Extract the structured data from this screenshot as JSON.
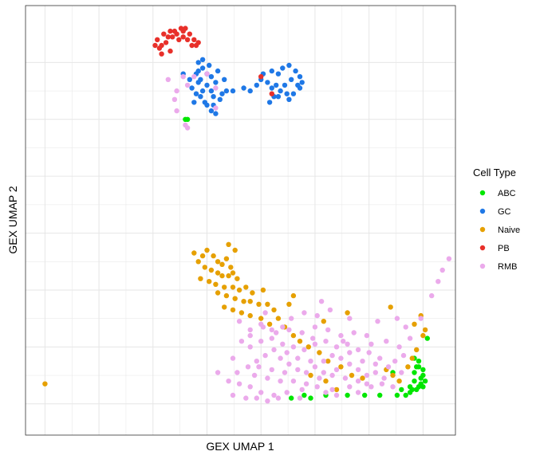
{
  "chart_data": {
    "type": "scatter",
    "title": "",
    "xlabel": "GEX UMAP 1",
    "ylabel": "GEX UMAP 2",
    "xlim": [
      -3.4,
      16.5
    ],
    "ylim": [
      -1.1,
      14.0
    ],
    "x_ticks": [
      -2.5,
      0,
      2.5,
      5,
      7.5,
      10,
      12.5,
      15
    ],
    "y_ticks": [
      0,
      2,
      4,
      6,
      8,
      10,
      12
    ],
    "tick_labels_shown": false,
    "grid": true,
    "legend": {
      "title": "Cell Type",
      "position": "right"
    },
    "series": [
      {
        "name": "ABC",
        "color": "#00E600",
        "points": [
          [
            4.0,
            10.0
          ],
          [
            4.1,
            10.0
          ],
          [
            14.5,
            0.5
          ],
          [
            14.7,
            0.5
          ],
          [
            14.8,
            0.6
          ],
          [
            14.9,
            0.7
          ],
          [
            15.0,
            0.6
          ],
          [
            14.6,
            0.8
          ],
          [
            14.9,
            0.9
          ],
          [
            15.0,
            1.0
          ],
          [
            15.1,
            0.8
          ],
          [
            14.4,
            0.4
          ],
          [
            14.2,
            0.3
          ],
          [
            13.8,
            0.3
          ],
          [
            13.0,
            0.3
          ],
          [
            12.3,
            0.3
          ],
          [
            11.5,
            0.3
          ],
          [
            10.5,
            0.3
          ],
          [
            9.8,
            0.2
          ],
          [
            9.5,
            0.3
          ],
          [
            8.9,
            0.2
          ],
          [
            13.6,
            1.1
          ],
          [
            14.6,
            1.1
          ],
          [
            14.8,
            1.3
          ],
          [
            14.6,
            1.6
          ],
          [
            14.7,
            1.3
          ],
          [
            15.2,
            2.3
          ],
          [
            15.0,
            1.2
          ],
          [
            14.8,
            1.5
          ],
          [
            14.4,
            0.6
          ],
          [
            14.0,
            0.5
          ]
        ]
      },
      {
        "name": "GC",
        "color": "#1F78E6",
        "points": [
          [
            4.6,
            12.0
          ],
          [
            4.8,
            11.8
          ],
          [
            4.5,
            11.6
          ],
          [
            4.6,
            11.3
          ],
          [
            4.8,
            11.0
          ],
          [
            5.0,
            11.2
          ],
          [
            5.2,
            11.0
          ],
          [
            5.4,
            11.3
          ],
          [
            5.3,
            10.8
          ],
          [
            5.0,
            10.5
          ],
          [
            4.7,
            10.8
          ],
          [
            4.9,
            10.6
          ],
          [
            5.3,
            10.5
          ],
          [
            5.6,
            10.7
          ],
          [
            5.2,
            11.5
          ],
          [
            4.3,
            11.1
          ],
          [
            4.2,
            11.4
          ],
          [
            3.9,
            11.6
          ],
          [
            5.8,
            11.4
          ],
          [
            5.9,
            11.0
          ],
          [
            4.6,
            11.7
          ],
          [
            5.1,
            11.9
          ],
          [
            4.8,
            12.1
          ],
          [
            4.7,
            11.4
          ],
          [
            5.0,
            11.6
          ],
          [
            4.5,
            10.9
          ],
          [
            5.2,
            10.3
          ],
          [
            5.4,
            10.2
          ],
          [
            8.3,
            11.6
          ],
          [
            8.5,
            11.8
          ],
          [
            8.8,
            11.9
          ],
          [
            9.1,
            11.7
          ],
          [
            9.3,
            11.5
          ],
          [
            9.2,
            11.2
          ],
          [
            9.0,
            10.9
          ],
          [
            8.7,
            10.9
          ],
          [
            8.4,
            11.0
          ],
          [
            8.2,
            11.2
          ],
          [
            8.0,
            11.1
          ],
          [
            7.8,
            11.3
          ],
          [
            7.5,
            11.4
          ],
          [
            7.3,
            11.2
          ],
          [
            7.0,
            11.0
          ],
          [
            6.7,
            11.1
          ],
          [
            7.6,
            11.6
          ],
          [
            8.0,
            11.7
          ],
          [
            8.9,
            11.4
          ],
          [
            9.3,
            11.1
          ],
          [
            8.6,
            11.2
          ],
          [
            8.1,
            10.8
          ],
          [
            7.9,
            10.6
          ],
          [
            8.3,
            10.8
          ],
          [
            8.8,
            10.7
          ],
          [
            9.4,
            11.3
          ],
          [
            6.2,
            11.0
          ],
          [
            5.5,
            11.7
          ],
          [
            4.4,
            10.6
          ],
          [
            5.7,
            10.9
          ]
        ]
      },
      {
        "name": "Naive",
        "color": "#E6A000",
        "points": [
          [
            -2.5,
            0.7
          ],
          [
            4.4,
            5.3
          ],
          [
            4.8,
            5.2
          ],
          [
            5.0,
            5.4
          ],
          [
            5.3,
            5.2
          ],
          [
            5.5,
            5.0
          ],
          [
            5.7,
            4.9
          ],
          [
            5.9,
            5.1
          ],
          [
            6.1,
            4.8
          ],
          [
            4.6,
            5.0
          ],
          [
            4.9,
            4.8
          ],
          [
            5.2,
            4.7
          ],
          [
            5.5,
            4.6
          ],
          [
            5.7,
            4.5
          ],
          [
            6.0,
            4.5
          ],
          [
            6.2,
            4.6
          ],
          [
            6.4,
            4.4
          ],
          [
            4.7,
            4.4
          ],
          [
            5.1,
            4.3
          ],
          [
            5.4,
            4.2
          ],
          [
            5.8,
            4.1
          ],
          [
            6.2,
            4.1
          ],
          [
            6.5,
            4.0
          ],
          [
            6.8,
            4.1
          ],
          [
            7.1,
            3.9
          ],
          [
            5.5,
            3.9
          ],
          [
            5.9,
            3.8
          ],
          [
            6.3,
            3.7
          ],
          [
            6.7,
            3.6
          ],
          [
            7.0,
            3.6
          ],
          [
            7.4,
            3.5
          ],
          [
            7.8,
            3.5
          ],
          [
            8.1,
            3.3
          ],
          [
            8.3,
            3.0
          ],
          [
            5.8,
            3.4
          ],
          [
            6.2,
            3.3
          ],
          [
            6.6,
            3.2
          ],
          [
            7.0,
            3.1
          ],
          [
            7.5,
            3.0
          ],
          [
            7.9,
            2.8
          ],
          [
            8.6,
            2.7
          ],
          [
            9.0,
            2.4
          ],
          [
            9.3,
            2.2
          ],
          [
            9.7,
            2.0
          ],
          [
            10.2,
            1.8
          ],
          [
            10.6,
            1.5
          ],
          [
            11.2,
            1.3
          ],
          [
            11.7,
            1.0
          ],
          [
            12.2,
            0.9
          ],
          [
            13.3,
            1.2
          ],
          [
            13.6,
            1.0
          ],
          [
            13.9,
            0.8
          ],
          [
            14.3,
            1.3
          ],
          [
            14.5,
            1.6
          ],
          [
            14.7,
            1.9
          ],
          [
            15.0,
            2.4
          ],
          [
            15.1,
            2.6
          ],
          [
            14.6,
            2.8
          ],
          [
            14.9,
            3.1
          ],
          [
            13.5,
            3.4
          ],
          [
            9.8,
            1.0
          ],
          [
            10.5,
            0.8
          ],
          [
            11.0,
            0.5
          ],
          [
            9.0,
            3.8
          ],
          [
            6.0,
            5.6
          ],
          [
            6.3,
            5.4
          ],
          [
            10.4,
            2.9
          ],
          [
            11.5,
            3.2
          ],
          [
            8.8,
            3.5
          ],
          [
            7.6,
            4.0
          ]
        ]
      },
      {
        "name": "PB",
        "color": "#E8302A",
        "points": [
          [
            3.7,
            12.8
          ],
          [
            3.9,
            12.9
          ],
          [
            4.1,
            12.8
          ],
          [
            4.3,
            12.6
          ],
          [
            3.6,
            13.0
          ],
          [
            3.9,
            13.1
          ],
          [
            4.2,
            13.0
          ],
          [
            4.4,
            12.8
          ],
          [
            4.5,
            12.6
          ],
          [
            3.4,
            12.9
          ],
          [
            3.5,
            13.1
          ],
          [
            3.2,
            12.9
          ],
          [
            3.1,
            12.7
          ],
          [
            2.9,
            12.6
          ],
          [
            2.8,
            12.5
          ],
          [
            2.6,
            12.6
          ],
          [
            2.7,
            12.8
          ],
          [
            3.0,
            13.0
          ],
          [
            3.3,
            13.1
          ],
          [
            3.8,
            13.2
          ],
          [
            4.0,
            13.2
          ],
          [
            4.6,
            12.7
          ],
          [
            3.3,
            12.4
          ],
          [
            2.9,
            12.3
          ],
          [
            7.5,
            11.5
          ],
          [
            8.0,
            10.9
          ]
        ]
      },
      {
        "name": "RMB",
        "color": "#EBAAEB",
        "points": [
          [
            3.2,
            11.4
          ],
          [
            3.6,
            11.0
          ],
          [
            3.9,
            11.5
          ],
          [
            4.1,
            11.2
          ],
          [
            4.4,
            11.5
          ],
          [
            5.0,
            11.6
          ],
          [
            5.4,
            11.1
          ],
          [
            3.5,
            10.7
          ],
          [
            3.6,
            10.3
          ],
          [
            4.0,
            9.8
          ],
          [
            4.1,
            9.7
          ],
          [
            5.4,
            10.4
          ],
          [
            6.5,
            2.9
          ],
          [
            7.0,
            2.6
          ],
          [
            7.5,
            2.8
          ],
          [
            8.0,
            2.6
          ],
          [
            8.5,
            2.7
          ],
          [
            16.2,
            5.1
          ],
          [
            15.9,
            4.7
          ],
          [
            15.7,
            4.3
          ],
          [
            15.4,
            3.8
          ],
          [
            14.9,
            3.0
          ],
          [
            7.0,
            0.6
          ],
          [
            7.5,
            0.4
          ],
          [
            6.5,
            0.7
          ],
          [
            6.8,
            0.2
          ],
          [
            7.3,
            0.2
          ],
          [
            7.8,
            0.1
          ],
          [
            8.3,
            0.2
          ],
          [
            8.7,
            0.4
          ],
          [
            9.4,
            0.5
          ],
          [
            10.1,
            0.6
          ],
          [
            10.8,
            0.5
          ],
          [
            11.6,
            0.6
          ],
          [
            12.4,
            0.7
          ],
          [
            13.1,
            0.7
          ],
          [
            13.6,
            0.6
          ],
          [
            6.4,
            1.1
          ],
          [
            6.9,
            1.3
          ],
          [
            7.3,
            1.5
          ],
          [
            7.7,
            1.7
          ],
          [
            8.1,
            1.9
          ],
          [
            8.4,
            1.6
          ],
          [
            8.8,
            1.4
          ],
          [
            9.2,
            1.2
          ],
          [
            9.6,
            1.1
          ],
          [
            10.0,
            1.3
          ],
          [
            10.4,
            1.5
          ],
          [
            10.8,
            1.7
          ],
          [
            11.2,
            1.6
          ],
          [
            11.6,
            1.4
          ],
          [
            12.0,
            1.2
          ],
          [
            12.4,
            1.0
          ],
          [
            12.8,
            1.1
          ],
          [
            13.2,
            0.9
          ],
          [
            7.0,
            2.0
          ],
          [
            7.5,
            2.2
          ],
          [
            8.0,
            2.3
          ],
          [
            8.5,
            2.1
          ],
          [
            9.0,
            2.0
          ],
          [
            9.5,
            1.9
          ],
          [
            10.0,
            2.1
          ],
          [
            10.5,
            2.2
          ],
          [
            11.0,
            2.0
          ],
          [
            11.5,
            2.1
          ],
          [
            12.0,
            1.9
          ],
          [
            12.5,
            1.8
          ],
          [
            13.0,
            1.6
          ],
          [
            8.2,
            2.5
          ],
          [
            8.8,
            2.6
          ],
          [
            9.4,
            2.5
          ],
          [
            10.0,
            2.7
          ],
          [
            10.6,
            2.6
          ],
          [
            11.2,
            2.4
          ],
          [
            11.8,
            2.5
          ],
          [
            12.4,
            2.4
          ],
          [
            9.0,
            0.8
          ],
          [
            9.6,
            0.7
          ],
          [
            10.2,
            0.9
          ],
          [
            10.8,
            1.0
          ],
          [
            11.4,
            0.9
          ],
          [
            12.0,
            0.8
          ],
          [
            12.6,
            0.6
          ],
          [
            13.4,
            1.3
          ],
          [
            7.2,
            1.0
          ],
          [
            7.8,
            0.9
          ],
          [
            8.4,
            0.8
          ],
          [
            8.0,
            1.2
          ],
          [
            8.6,
            1.1
          ],
          [
            9.2,
            1.6
          ],
          [
            9.8,
            1.5
          ],
          [
            10.4,
            1.1
          ],
          [
            11.0,
            1.2
          ],
          [
            11.6,
            1.8
          ],
          [
            12.2,
            1.5
          ],
          [
            12.8,
            1.4
          ],
          [
            8.9,
            3.0
          ],
          [
            9.5,
            3.2
          ],
          [
            10.1,
            3.1
          ],
          [
            10.7,
            3.3
          ],
          [
            7.7,
            3.2
          ],
          [
            13.8,
            3.0
          ],
          [
            14.2,
            2.7
          ],
          [
            14.4,
            2.3
          ],
          [
            13.9,
            2.0
          ],
          [
            14.1,
            1.7
          ],
          [
            13.7,
            1.5
          ],
          [
            14.0,
            1.1
          ],
          [
            6.0,
            0.8
          ],
          [
            5.5,
            1.1
          ],
          [
            6.2,
            1.6
          ],
          [
            6.6,
            2.2
          ],
          [
            7.0,
            2.4
          ],
          [
            7.6,
            2.7
          ],
          [
            10.3,
            3.6
          ],
          [
            11.6,
            3.0
          ],
          [
            12.9,
            2.9
          ],
          [
            13.3,
            2.2
          ],
          [
            11.0,
            0.3
          ],
          [
            9.3,
            0.2
          ],
          [
            8.1,
            0.3
          ],
          [
            6.2,
            0.3
          ],
          [
            10.5,
            0.4
          ],
          [
            12.0,
            0.4
          ],
          [
            7.4,
            1.3
          ],
          [
            8.7,
            1.8
          ],
          [
            9.9,
            2.3
          ],
          [
            11.3,
            2.2
          ],
          [
            12.6,
            2.1
          ]
        ]
      }
    ]
  }
}
